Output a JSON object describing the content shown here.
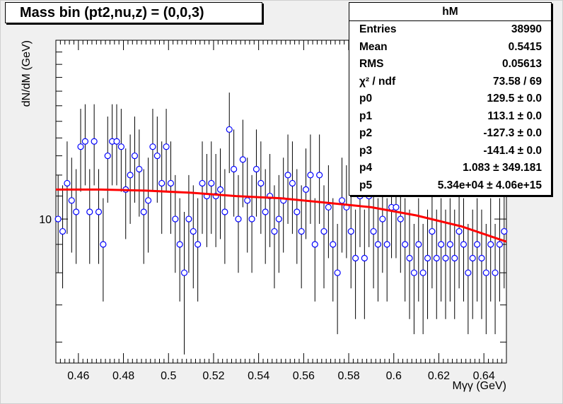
{
  "title": "Mass bin (pt2,nu,z) = (0,0,3)",
  "stats": {
    "name": "hM",
    "rows": [
      {
        "label": "Entries",
        "value": "38990"
      },
      {
        "label": "Mean",
        "value": "0.5415"
      },
      {
        "label": "RMS",
        "value": "0.05613"
      },
      {
        "label": "χ² / ndf",
        "value": "73.58 / 69"
      },
      {
        "label": "p0",
        "value": "129.5 ± 0.0"
      },
      {
        "label": "p1",
        "value": "113.1 ± 0.0"
      },
      {
        "label": "p2",
        "value": "-127.3 ± 0.0"
      },
      {
        "label": "p3",
        "value": "-141.4 ± 0.0"
      },
      {
        "label": "p4",
        "value": "1.083 ± 349.181"
      },
      {
        "label": "p5",
        "value": "5.34e+04 ± 4.06e+15"
      }
    ]
  },
  "chart_data": {
    "type": "scatter",
    "title": "Mass bin (pt2,nu,z) = (0,0,3)",
    "xlabel": "Mγγ (GeV)",
    "ylabel": "dN/dM (GeV)",
    "xlim": [
      0.45,
      0.65
    ],
    "ylim": [
      5.5,
      21
    ],
    "y_scale": "log",
    "x_ticks": [
      "0.46",
      "0.48",
      "0.5",
      "0.52",
      "0.54",
      "0.56",
      "0.58",
      "0.6",
      "0.62",
      "0.64"
    ],
    "y_tick_labels": [
      "10"
    ],
    "series": [
      {
        "kind": "points-with-error-bars",
        "color": "#0000ff",
        "x": [
          0.451,
          0.453,
          0.455,
          0.457,
          0.459,
          0.461,
          0.463,
          0.465,
          0.467,
          0.469,
          0.471,
          0.473,
          0.475,
          0.477,
          0.479,
          0.481,
          0.483,
          0.485,
          0.487,
          0.489,
          0.491,
          0.493,
          0.495,
          0.497,
          0.499,
          0.501,
          0.503,
          0.505,
          0.507,
          0.509,
          0.511,
          0.513,
          0.515,
          0.517,
          0.519,
          0.521,
          0.523,
          0.525,
          0.527,
          0.529,
          0.531,
          0.533,
          0.535,
          0.537,
          0.539,
          0.541,
          0.543,
          0.545,
          0.547,
          0.549,
          0.551,
          0.553,
          0.555,
          0.557,
          0.559,
          0.561,
          0.563,
          0.565,
          0.567,
          0.569,
          0.571,
          0.573,
          0.575,
          0.577,
          0.579,
          0.581,
          0.583,
          0.585,
          0.587,
          0.589,
          0.591,
          0.593,
          0.595,
          0.597,
          0.599,
          0.601,
          0.603,
          0.605,
          0.607,
          0.609,
          0.611,
          0.613,
          0.615,
          0.617,
          0.619,
          0.621,
          0.623,
          0.625,
          0.627,
          0.629,
          0.631,
          0.633,
          0.635,
          0.637,
          0.639,
          0.641,
          0.643,
          0.645,
          0.647,
          0.649
        ],
        "y": [
          10.0,
          9.5,
          11.6,
          10.8,
          10.3,
          13.5,
          13.8,
          10.3,
          13.8,
          10.3,
          9.0,
          13.0,
          13.8,
          13.8,
          13.5,
          11.3,
          12.0,
          13.0,
          12.3,
          10.3,
          10.8,
          13.5,
          13.0,
          11.6,
          13.5,
          11.6,
          10.0,
          9.0,
          8.0,
          10.0,
          9.5,
          9.0,
          11.6,
          11.0,
          11.6,
          11.0,
          11.3,
          10.3,
          14.5,
          12.3,
          10.0,
          12.8,
          10.8,
          10.0,
          12.3,
          11.6,
          10.3,
          11.0,
          9.5,
          10.0,
          10.8,
          12.0,
          11.6,
          10.3,
          9.5,
          11.3,
          12.0,
          9.0,
          12.0,
          9.5,
          10.5,
          9.0,
          8.0,
          10.8,
          10.5,
          9.5,
          8.5,
          11.0,
          8.5,
          11.0,
          9.5,
          9.0,
          10.0,
          9.0,
          10.5,
          10.5,
          10.0,
          9.0,
          8.5,
          8.0,
          9.0,
          8.0,
          8.5,
          9.5,
          8.5,
          9.0,
          8.5,
          9.0,
          8.5,
          9.5,
          9.0,
          8.0,
          8.5,
          9.0,
          8.5,
          8.0,
          9.0,
          8.0,
          9.0,
          9.5
        ],
        "yerr": [
          2.0,
          2.0,
          2.2,
          2.1,
          2.0,
          2.3,
          2.3,
          2.0,
          2.3,
          2.0,
          1.9,
          2.3,
          2.3,
          2.3,
          2.3,
          2.1,
          2.2,
          2.3,
          2.2,
          2.0,
          2.1,
          2.3,
          2.3,
          2.2,
          2.3,
          2.2,
          2.0,
          1.9,
          2.3,
          2.0,
          2.0,
          1.9,
          2.2,
          2.1,
          2.2,
          2.1,
          2.1,
          2.0,
          2.4,
          2.2,
          2.0,
          2.3,
          2.1,
          2.0,
          2.2,
          2.2,
          2.0,
          2.1,
          2.0,
          2.0,
          2.1,
          2.2,
          2.2,
          2.0,
          2.0,
          2.1,
          2.2,
          1.9,
          2.2,
          2.0,
          2.0,
          1.9,
          1.8,
          2.1,
          2.0,
          2.0,
          1.9,
          2.1,
          1.9,
          2.1,
          2.0,
          1.9,
          2.0,
          1.9,
          2.0,
          2.0,
          2.0,
          1.9,
          1.9,
          1.8,
          1.9,
          1.8,
          1.9,
          2.0,
          1.9,
          1.9,
          1.9,
          1.9,
          1.9,
          2.0,
          1.9,
          1.8,
          1.9,
          1.9,
          1.9,
          1.8,
          1.9,
          1.8,
          1.9,
          2.0
        ]
      },
      {
        "kind": "fit-line",
        "color": "#ff0000",
        "x": [
          0.45,
          0.47,
          0.49,
          0.51,
          0.53,
          0.55,
          0.57,
          0.59,
          0.61,
          0.63,
          0.65
        ],
        "y": [
          11.3,
          11.3,
          11.25,
          11.15,
          11.0,
          10.9,
          10.7,
          10.5,
          10.15,
          9.7,
          9.1
        ]
      }
    ]
  }
}
